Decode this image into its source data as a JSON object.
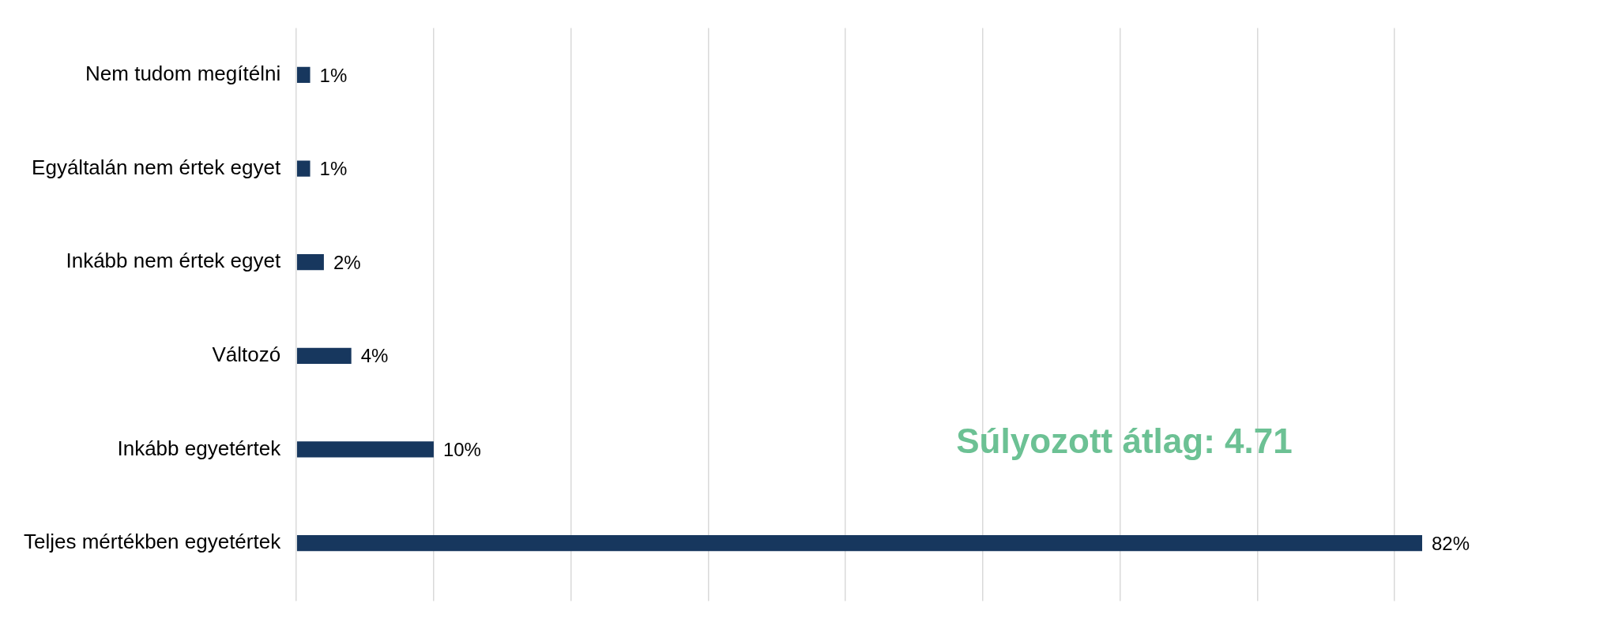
{
  "chart_data": {
    "type": "bar",
    "orientation": "horizontal",
    "categories": [
      "Nem tudom megítélni",
      "Egyáltalán nem értek egyet",
      "Inkább nem értek egyet",
      "Változó",
      "Inkább egyetértek",
      "Teljes mértékben egyetértek"
    ],
    "values": [
      1,
      1,
      2,
      4,
      10,
      82
    ],
    "value_labels": [
      "1%",
      "1%",
      "2%",
      "4%",
      "10%",
      "82%"
    ],
    "color": "#17375e",
    "xticks": [
      {
        "value": 0,
        "label": null
      },
      {
        "value": 10,
        "label": null
      },
      {
        "value": 20,
        "label": null
      },
      {
        "value": 30,
        "label": null
      },
      {
        "value": 40,
        "label": null
      },
      {
        "value": 50,
        "label": null
      },
      {
        "value": 60,
        "label": null
      },
      {
        "value": 70,
        "label": null
      },
      {
        "value": 80,
        "label": null
      }
    ],
    "tick_labels": "y",
    "grid": "x",
    "legend": false,
    "annotations": [
      "Súlyozott átlag: 4.71"
    ]
  }
}
